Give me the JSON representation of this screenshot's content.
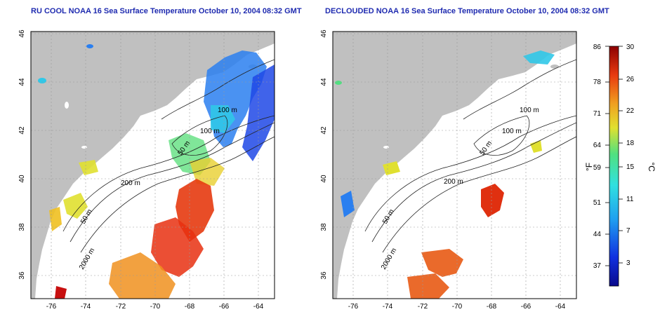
{
  "panels": [
    {
      "title": "RU COOL NOAA 16 Sea Surface Temperature October 10, 2004 08:32 GMT",
      "lon_ticks": [
        "-76",
        "-74",
        "-72",
        "-70",
        "-68",
        "-66",
        "-64"
      ],
      "lat_ticks": [
        "46",
        "44",
        "42",
        "40",
        "38",
        "36"
      ],
      "contours": [
        "100 m",
        "100 m",
        "50 m",
        "200 m",
        "50 m",
        "2000 m"
      ]
    },
    {
      "title": "DECLOUDED NOAA 16 Sea Surface Temperature October 10, 2004 08:32 GMT",
      "lon_ticks": [
        "-76",
        "-74",
        "-72",
        "-70",
        "-68",
        "-66",
        "-64"
      ],
      "lat_ticks": [
        "46",
        "44",
        "42",
        "40",
        "38",
        "36"
      ],
      "contours": [
        "100 m",
        "100 m",
        "50 m",
        "200 m",
        "50 m",
        "2000 m"
      ]
    }
  ],
  "colorbar": {
    "f_label": "°F",
    "c_label": "°C",
    "f_ticks": [
      "86",
      "78",
      "71",
      "64",
      "59",
      "51",
      "44",
      "37"
    ],
    "c_ticks": [
      "30",
      "26",
      "22",
      "18",
      "15",
      "11",
      "7",
      "3"
    ]
  },
  "colors": {
    "land": "#c0c0c0",
    "ocean": "#ffffff",
    "title": "#1f2bb0"
  }
}
